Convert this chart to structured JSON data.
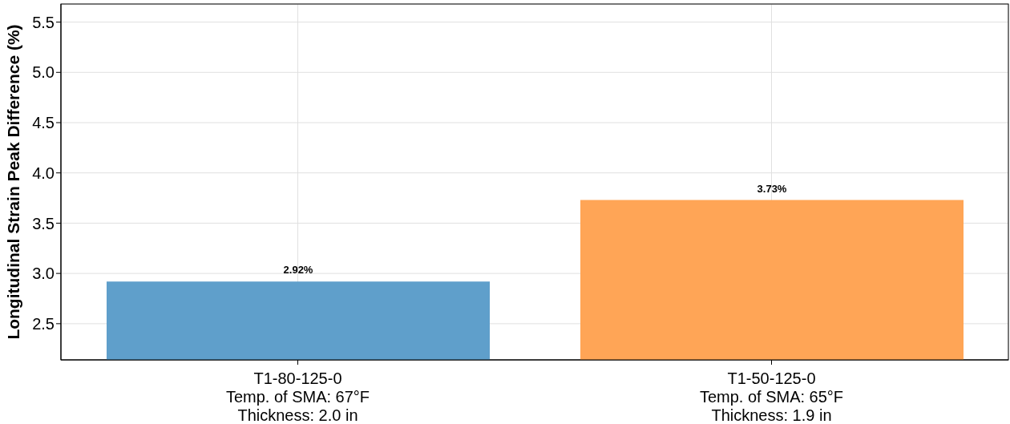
{
  "chart_data": {
    "type": "bar",
    "ylabel": "Longitudinal Strain Peak Difference (%)",
    "categories": [
      "T1-80-125-0\nTemp. of SMA: 67°F\nThickness: 2.0 in",
      "T1-50-125-0\nTemp. of SMA: 65°F\nThickness: 1.9 in"
    ],
    "values": [
      2.92,
      3.73
    ],
    "colors": [
      "#5f9fcb",
      "#ffa556"
    ],
    "value_labels": [
      "2.92%",
      "3.73%"
    ],
    "ylim": [
      2.14,
      5.68
    ],
    "yticks": [
      2.5,
      {
        "value": 3,
        "label": "3.0"
      },
      3.5,
      {
        "value": 4,
        "label": "4.0"
      },
      4.5,
      {
        "value": 5,
        "label": "5.0"
      },
      5.5
    ],
    "grid": true
  }
}
